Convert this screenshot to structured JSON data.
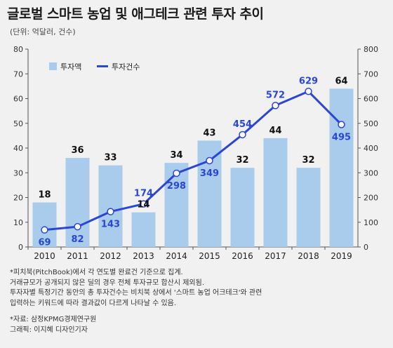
{
  "title": "글로벌 스마트 농업 및 애그테크 관련 투자 추이",
  "unit_note": "(단위: 억달러, 건수)",
  "chart_data": {
    "type": "bar+line",
    "categories": [
      "2010",
      "2011",
      "2012",
      "2013",
      "2014",
      "2015",
      "2016",
      "2017",
      "2018",
      "2019"
    ],
    "series": [
      {
        "name": "투자액",
        "type": "bar",
        "axis": "left",
        "color": "#a9cbec",
        "values": [
          18,
          36,
          33,
          14,
          34,
          43,
          32,
          44,
          32,
          64
        ]
      },
      {
        "name": "투자건수",
        "type": "line",
        "axis": "right",
        "color": "#2b46d4",
        "values": [
          69,
          82,
          143,
          174,
          298,
          349,
          454,
          572,
          629,
          495
        ]
      }
    ],
    "left_axis": {
      "min": 0,
      "max": 80,
      "ticks": [
        "0",
        "10",
        "20",
        "30",
        "40",
        "50",
        "60",
        "70",
        "80"
      ]
    },
    "right_axis": {
      "min": 0,
      "max": 800,
      "ticks": [
        "0",
        "100",
        "200",
        "300",
        "400",
        "500",
        "600",
        "700",
        "800"
      ]
    },
    "legend_position": "top-left",
    "grid": false
  },
  "notes": [
    "*피치북(PitchBook)에서 각 연도별 완료건 기준으로 집계.",
    "거래규모가 공개되지 않은 딜의 경우 전체 투자규모 합산시 제외됨.",
    "투자자별 특정기간 동안의 총 투자건수는 비치북 상에서 '스마트 농업 어크테크'와 관련",
    "입력하는 키워드에 따라 결과값이 다르게 나타날 수 있음."
  ],
  "credits": [
    "*자료: 삼정KPMG경제연구원",
    "그래픽: 이지혜 디자인기자"
  ]
}
